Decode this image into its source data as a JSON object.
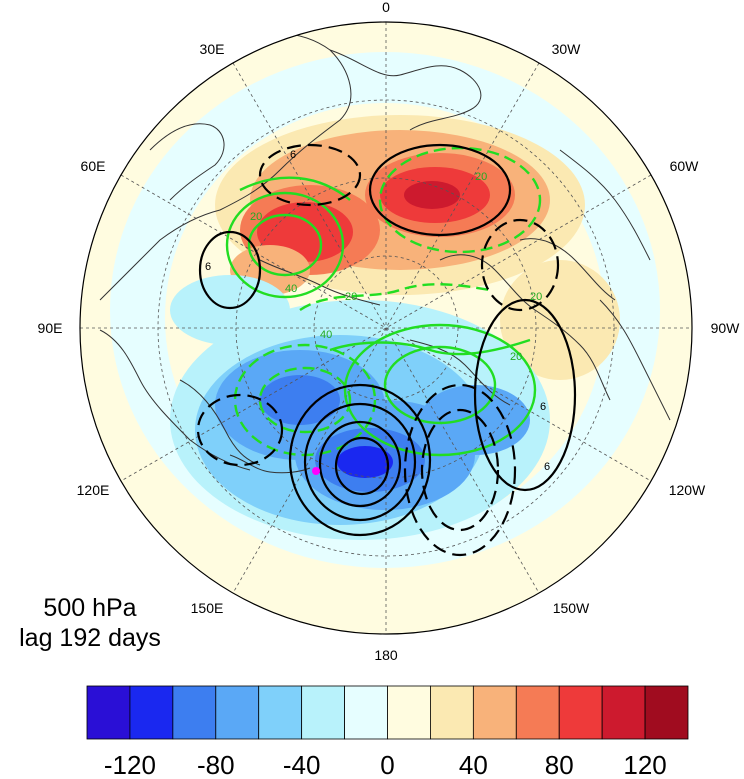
{
  "map": {
    "projection": "north-polar-stereographic",
    "longitude_labels": {
      "top": "0",
      "upper_left": "30E",
      "upper_right": "30W",
      "left_upper": "60E",
      "right_upper": "60W",
      "left": "90E",
      "right": "90W",
      "left_lower": "120E",
      "right_lower": "120W",
      "lower_left": "150E",
      "lower_right": "150W",
      "bottom": "180"
    },
    "caption": {
      "level": "500 hPa",
      "lag": "lag 192 days"
    },
    "contour_labels": {
      "black": [
        "6",
        "6",
        "6",
        "6"
      ],
      "green": [
        "20",
        "40",
        "20",
        "20",
        "40",
        "20",
        "20"
      ]
    },
    "marker_color": "#ff00ff",
    "colors": {
      "black_contour": "#000000",
      "green_contour": "#22dd22",
      "land_outline": "#333333"
    }
  },
  "colorbar": {
    "colors": [
      "#2a0fd6",
      "#1a28f0",
      "#3d7ef0",
      "#5aa8f6",
      "#7fd0fa",
      "#b8f2fb",
      "#e6feff",
      "#fffce0",
      "#fbe9b2",
      "#f8b27a",
      "#f57b55",
      "#ee3a3a",
      "#cd1a2e",
      "#a00c1f"
    ],
    "tick_labels": [
      "-120",
      "-80",
      "-40",
      "0",
      "40",
      "80",
      "120"
    ]
  }
}
